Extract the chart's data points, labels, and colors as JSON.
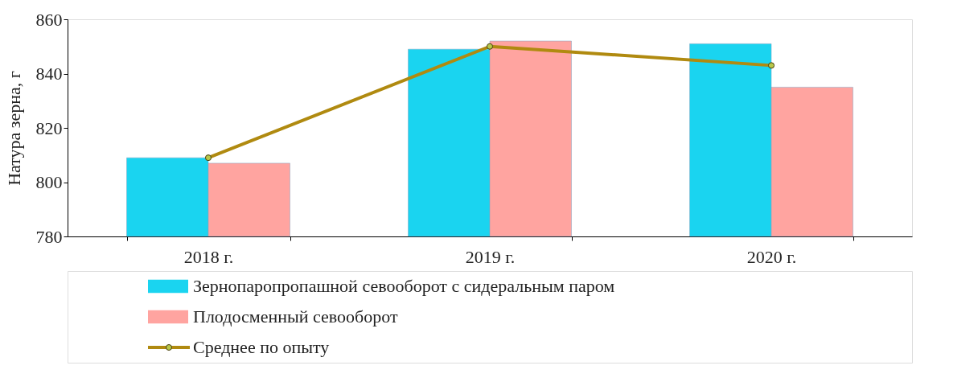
{
  "chart_data": {
    "type": "bar",
    "ylabel": "Натура  зерна, г",
    "categories": [
      "2018 г.",
      "2019 г.",
      "2020 г."
    ],
    "series": [
      {
        "name": "Зернопаропропашной  севооборот с сидеральным паром",
        "color": "#1ad4f0",
        "values": [
          809,
          849,
          851
        ]
      },
      {
        "name": "Плодосменный севооборот",
        "color": "#ffa4a0",
        "values": [
          807,
          852,
          835
        ]
      },
      {
        "name": "Среднее по опыту",
        "type": "line",
        "color": "#b08a10",
        "values": [
          809,
          850,
          843
        ]
      }
    ],
    "ylim": [
      780,
      860
    ],
    "yticks": [
      780,
      800,
      820,
      840,
      860
    ],
    "grid": false,
    "legend": "bottom",
    "marker": "circle",
    "line_style": "solid"
  }
}
